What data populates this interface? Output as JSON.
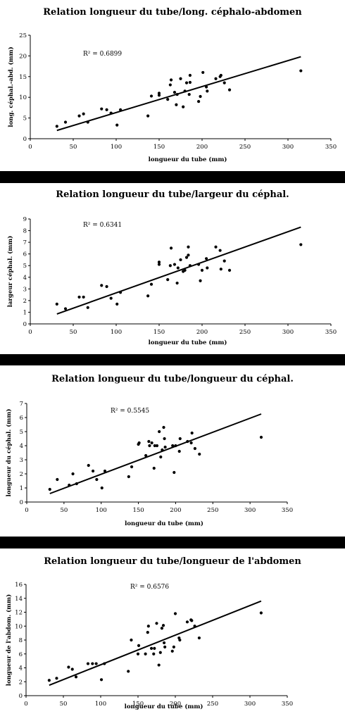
{
  "chart_data": [
    {
      "type": "scatter",
      "title": "Relation longueur du tube/long. céphalo-abdomen",
      "xlabel": "longueur du tube (mm)",
      "ylabel": "long. céphal.-abd. (mm)",
      "annotation": "R² = 0.6899",
      "xlim": [
        0,
        350
      ],
      "ylim": [
        0,
        25
      ],
      "xticks": [
        0,
        50,
        100,
        150,
        200,
        250,
        300,
        350
      ],
      "yticks": [
        0,
        5,
        10,
        15,
        20,
        25
      ],
      "trendline": [
        [
          31,
          2.0
        ],
        [
          315,
          19.8
        ]
      ],
      "points": [
        [
          31,
          3
        ],
        [
          41,
          4
        ],
        [
          57,
          5.5
        ],
        [
          62,
          6
        ],
        [
          67,
          4
        ],
        [
          83,
          7.2
        ],
        [
          89,
          7
        ],
        [
          94,
          6.2
        ],
        [
          101,
          3.3
        ],
        [
          105,
          7
        ],
        [
          137,
          5.5
        ],
        [
          141,
          10.3
        ],
        [
          150,
          11
        ],
        [
          150,
          10.5
        ],
        [
          160,
          9.5
        ],
        [
          164,
          14.2
        ],
        [
          163,
          13
        ],
        [
          168,
          11.2
        ],
        [
          171,
          10.7
        ],
        [
          170,
          8.2
        ],
        [
          175,
          14.5
        ],
        [
          178,
          7.7
        ],
        [
          180,
          11.5
        ],
        [
          182,
          13.5
        ],
        [
          186,
          15.3
        ],
        [
          186,
          13.6
        ],
        [
          185,
          10.7
        ],
        [
          196,
          9
        ],
        [
          198,
          10.2
        ],
        [
          201,
          16
        ],
        [
          206,
          11.5
        ],
        [
          205,
          12.5
        ],
        [
          216,
          14.5
        ],
        [
          221,
          15
        ],
        [
          222,
          15.3
        ],
        [
          226,
          13.5
        ],
        [
          232,
          11.8
        ],
        [
          315,
          16.4
        ]
      ]
    },
    {
      "type": "scatter",
      "title": "Relation longueur du tube/largeur du céphal.",
      "xlabel": "longueur du tube (mm)",
      "ylabel": "largeur céphal. (mm)",
      "annotation": "R² = 0.6341",
      "xlim": [
        0,
        350
      ],
      "ylim": [
        0,
        9
      ],
      "xticks": [
        0,
        50,
        100,
        150,
        200,
        250,
        300,
        350
      ],
      "yticks": [
        0,
        1,
        2,
        3,
        4,
        5,
        6,
        7,
        8,
        9
      ],
      "trendline": [
        [
          31,
          0.85
        ],
        [
          315,
          8.3
        ]
      ],
      "points": [
        [
          31,
          1.7
        ],
        [
          41,
          1.3
        ],
        [
          57,
          2.3
        ],
        [
          62,
          2.3
        ],
        [
          67,
          1.4
        ],
        [
          83,
          3.3
        ],
        [
          89,
          3.2
        ],
        [
          94,
          2.2
        ],
        [
          101,
          1.7
        ],
        [
          105,
          2.7
        ],
        [
          137,
          2.4
        ],
        [
          141,
          3.4
        ],
        [
          150,
          5.3
        ],
        [
          150,
          5.1
        ],
        [
          160,
          3.8
        ],
        [
          164,
          6.5
        ],
        [
          163,
          5.0
        ],
        [
          168,
          5.1
        ],
        [
          171,
          3.5
        ],
        [
          172,
          4.8
        ],
        [
          175,
          5.5
        ],
        [
          178,
          4.5
        ],
        [
          180,
          4.6
        ],
        [
          182,
          5.7
        ],
        [
          184,
          6.6
        ],
        [
          184,
          5.9
        ],
        [
          186,
          5.0
        ],
        [
          196,
          5.1
        ],
        [
          198,
          3.7
        ],
        [
          200,
          4.6
        ],
        [
          205,
          5.6
        ],
        [
          206,
          4.8
        ],
        [
          216,
          6.6
        ],
        [
          221,
          6.3
        ],
        [
          222,
          4.7
        ],
        [
          226,
          5.4
        ],
        [
          232,
          4.6
        ],
        [
          315,
          6.8
        ]
      ]
    },
    {
      "type": "scatter",
      "title": "Relation longueur du tube/longueur du céphal.",
      "xlabel": "longueur du tube (mm)",
      "ylabel": "longueur du céphal. (mm)",
      "annotation": "R² = 0.5545",
      "xlim": [
        0,
        350
      ],
      "ylim": [
        0,
        7
      ],
      "xticks": [
        0,
        50,
        100,
        150,
        200,
        250,
        300,
        350
      ],
      "yticks": [
        0,
        1,
        2,
        3,
        4,
        5,
        6,
        7
      ],
      "trendline": [
        [
          31,
          0.6
        ],
        [
          315,
          6.25
        ]
      ],
      "points": [
        [
          31,
          0.9
        ],
        [
          41,
          1.6
        ],
        [
          57,
          1.2
        ],
        [
          62,
          2.0
        ],
        [
          67,
          1.3
        ],
        [
          83,
          2.6
        ],
        [
          89,
          2.2
        ],
        [
          94,
          1.6
        ],
        [
          101,
          1.0
        ],
        [
          105,
          2.2
        ],
        [
          137,
          1.8
        ],
        [
          141,
          2.5
        ],
        [
          150,
          4.1
        ],
        [
          151,
          4.2
        ],
        [
          160,
          3.3
        ],
        [
          164,
          4.3
        ],
        [
          165,
          4.0
        ],
        [
          168,
          4.2
        ],
        [
          171,
          2.4
        ],
        [
          172,
          4.0
        ],
        [
          175,
          4.0
        ],
        [
          178,
          5.0
        ],
        [
          180,
          3.2
        ],
        [
          182,
          3.7
        ],
        [
          184,
          5.3
        ],
        [
          185,
          4.5
        ],
        [
          186,
          3.9
        ],
        [
          196,
          4.0
        ],
        [
          198,
          2.1
        ],
        [
          200,
          4.0
        ],
        [
          205,
          3.6
        ],
        [
          206,
          4.5
        ],
        [
          216,
          4.3
        ],
        [
          221,
          4.2
        ],
        [
          222,
          4.9
        ],
        [
          226,
          3.8
        ],
        [
          232,
          3.4
        ],
        [
          315,
          4.6
        ]
      ]
    },
    {
      "type": "scatter",
      "title": "Relation longueur du tube/longueur de l'abdomen",
      "xlabel": "longueur du tube (mm)",
      "ylabel": "longueur de l'abdom. (mm)",
      "annotation": "R² = 0.6576",
      "xlim": [
        0,
        350
      ],
      "ylim": [
        0,
        16
      ],
      "xticks": [
        0,
        50,
        100,
        150,
        200,
        250,
        300,
        350
      ],
      "yticks": [
        0,
        2,
        4,
        6,
        8,
        10,
        12,
        14,
        16
      ],
      "trendline": [
        [
          31,
          1.5
        ],
        [
          315,
          13.6
        ]
      ],
      "points": [
        [
          31,
          2.2
        ],
        [
          41,
          2.5
        ],
        [
          57,
          4.1
        ],
        [
          62,
          3.8
        ],
        [
          67,
          2.7
        ],
        [
          83,
          4.6
        ],
        [
          89,
          4.6
        ],
        [
          94,
          4.6
        ],
        [
          101,
          2.3
        ],
        [
          105,
          4.6
        ],
        [
          137,
          3.5
        ],
        [
          141,
          8.0
        ],
        [
          150,
          6.0
        ],
        [
          151,
          7.2
        ],
        [
          160,
          6.0
        ],
        [
          164,
          10.0
        ],
        [
          163,
          9.1
        ],
        [
          168,
          6.8
        ],
        [
          171,
          6.0
        ],
        [
          172,
          6.8
        ],
        [
          175,
          10.4
        ],
        [
          178,
          4.4
        ],
        [
          180,
          6.2
        ],
        [
          182,
          9.7
        ],
        [
          184,
          10.1
        ],
        [
          185,
          7.6
        ],
        [
          186,
          7.0
        ],
        [
          196,
          6.4
        ],
        [
          198,
          7.0
        ],
        [
          200,
          11.8
        ],
        [
          205,
          8.3
        ],
        [
          206,
          8.0
        ],
        [
          216,
          10.6
        ],
        [
          221,
          10.9
        ],
        [
          222,
          10.8
        ],
        [
          226,
          10.0
        ],
        [
          232,
          8.3
        ],
        [
          315,
          11.9
        ]
      ]
    }
  ]
}
